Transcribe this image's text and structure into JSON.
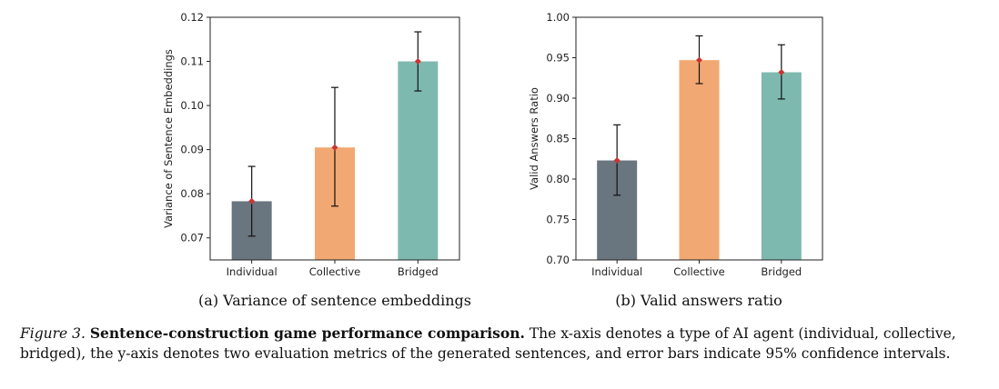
{
  "chart_data": [
    {
      "type": "bar",
      "subcaption": "(a) Variance of sentence embeddings",
      "ylabel": "Variance of Sentence Embeddings",
      "xlabel": "",
      "categories": [
        "Individual",
        "Collective",
        "Bridged"
      ],
      "values": [
        0.0783,
        0.0905,
        0.11
      ],
      "error_low": [
        0.0704,
        0.0772,
        0.1033
      ],
      "error_high": [
        0.0862,
        0.1041,
        0.1167
      ],
      "ylim": [
        0.065,
        0.12
      ],
      "yticks": [
        0.07,
        0.08,
        0.09,
        0.1,
        0.11,
        0.12
      ],
      "yticklabels": [
        "0.07",
        "0.08",
        "0.09",
        "0.10",
        "0.11",
        "0.12"
      ],
      "colors": [
        "#69757f",
        "#f2a872",
        "#7eb9b0"
      ],
      "marker_color": "#cc3333",
      "grid": false
    },
    {
      "type": "bar",
      "subcaption": "(b) Valid answers ratio",
      "ylabel": "Valid Answers Ratio",
      "xlabel": "",
      "categories": [
        "Individual",
        "Collective",
        "Bridged"
      ],
      "values": [
        0.823,
        0.947,
        0.932
      ],
      "error_low": [
        0.78,
        0.918,
        0.899
      ],
      "error_high": [
        0.867,
        0.977,
        0.966
      ],
      "ylim": [
        0.7,
        1.0
      ],
      "yticks": [
        0.7,
        0.75,
        0.8,
        0.85,
        0.9,
        0.95,
        1.0
      ],
      "yticklabels": [
        "0.70",
        "0.75",
        "0.80",
        "0.85",
        "0.90",
        "0.95",
        "1.00"
      ],
      "colors": [
        "#69757f",
        "#f2a872",
        "#7eb9b0"
      ],
      "marker_color": "#cc3333",
      "grid": false
    }
  ],
  "caption": {
    "figure_number": "Figure 3.",
    "title": "Sentence-construction game performance comparison.",
    "body": "The x-axis denotes a type of AI agent (individual, collective, bridged), the y-axis denotes two evaluation metrics of the generated sentences, and error bars indicate 95% confidence intervals."
  }
}
